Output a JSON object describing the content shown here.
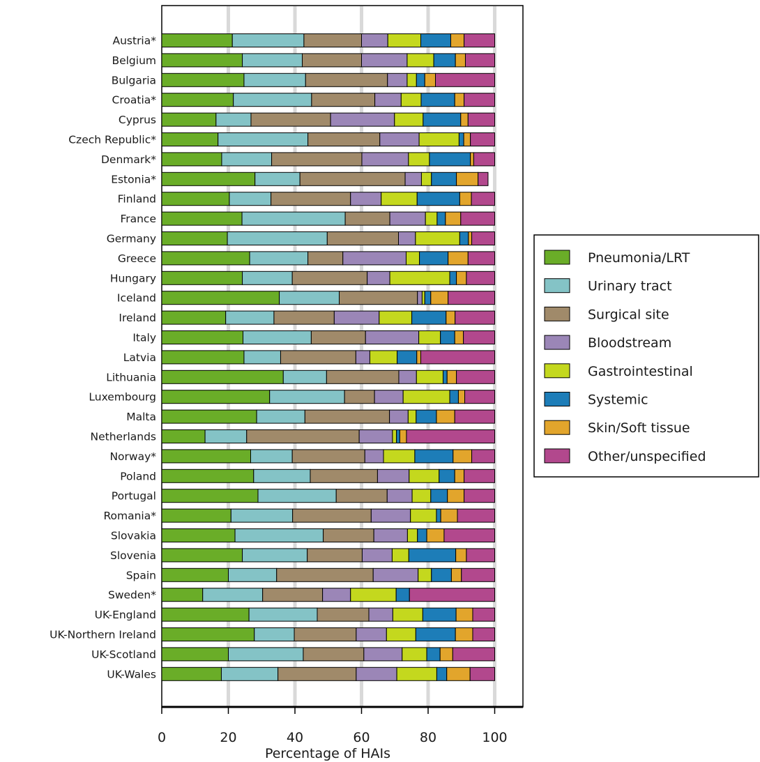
{
  "chart_data": {
    "type": "bar",
    "orientation": "horizontal",
    "stacked": true,
    "title": "",
    "xlabel": "Percentage of HAIs",
    "ylabel": "",
    "xlim": [
      0,
      108
    ],
    "xticks": [
      0,
      20,
      40,
      60,
      80,
      100
    ],
    "grid": "vertical",
    "legend_position": "right",
    "categories": [
      "Austria*",
      "Belgium",
      "Bulgaria",
      "Croatia*",
      "Cyprus",
      "Czech Republic*",
      "Denmark*",
      "Estonia*",
      "Finland",
      "France",
      "Germany",
      "Greece",
      "Hungary",
      "Iceland",
      "Ireland",
      "Italy",
      "Latvia",
      "Lithuania",
      "Luxembourg",
      "Malta",
      "Netherlands",
      "Norway*",
      "Poland",
      "Portugal",
      "Romania*",
      "Slovakia",
      "Slovenia",
      "Spain",
      "Sweden*",
      "UK-England",
      "UK-Northern Ireland",
      "UK-Scotland",
      "UK-Wales"
    ],
    "series": [
      {
        "name": "Pneumonia/LRT",
        "color": "#6aad28",
        "values": [
          21.2,
          24.2,
          24.7,
          21.5,
          16.3,
          16.9,
          18.0,
          28.0,
          20.3,
          24.1,
          19.7,
          26.4,
          24.2,
          35.3,
          19.2,
          24.4,
          24.7,
          36.5,
          32.4,
          28.5,
          13.0,
          26.7,
          27.6,
          28.9,
          20.8,
          22.0,
          24.2,
          20.0,
          12.3,
          26.2,
          27.8,
          20.0,
          17.9
        ]
      },
      {
        "name": "Urinary tract",
        "color": "#84c3c6",
        "values": [
          21.5,
          18.0,
          18.5,
          23.5,
          10.5,
          27.0,
          15.0,
          13.5,
          12.5,
          31.0,
          30.0,
          17.5,
          15.0,
          18.0,
          14.5,
          20.5,
          11.0,
          13.0,
          22.5,
          14.5,
          12.5,
          12.5,
          17.0,
          23.5,
          18.5,
          26.5,
          19.5,
          14.5,
          18.0,
          20.5,
          12.0,
          22.5,
          17.0
        ]
      },
      {
        "name": "Surgical site",
        "color": "#a08a6a",
        "values": [
          17.3,
          17.8,
          24.6,
          19.0,
          23.9,
          21.6,
          27.1,
          31.6,
          23.9,
          13.4,
          21.4,
          10.5,
          22.5,
          23.5,
          18.1,
          16.3,
          22.6,
          21.7,
          9.0,
          25.4,
          33.8,
          21.8,
          20.2,
          15.3,
          23.6,
          15.2,
          16.5,
          29.0,
          18.0,
          15.5,
          18.6,
          18.2,
          23.5
        ]
      },
      {
        "name": "Bloodstream",
        "color": "#9b86b7",
        "values": [
          7.9,
          13.7,
          5.9,
          7.9,
          19.2,
          11.8,
          14.0,
          4.9,
          9.2,
          10.7,
          5.1,
          19.0,
          6.8,
          1.4,
          13.5,
          16.0,
          4.2,
          5.3,
          8.6,
          5.6,
          10.0,
          5.6,
          9.5,
          7.5,
          11.8,
          10.1,
          9.0,
          13.5,
          8.4,
          7.2,
          9.1,
          11.5,
          12.2
        ]
      },
      {
        "name": "Gastrointestinal",
        "color": "#c4d81e",
        "values": [
          9.9,
          8.0,
          2.8,
          6.0,
          8.6,
          12.0,
          6.3,
          3.0,
          10.8,
          3.5,
          13.3,
          4.0,
          18.0,
          0.8,
          9.8,
          6.5,
          8.2,
          8.0,
          14.0,
          2.4,
          1.2,
          9.4,
          9.0,
          5.6,
          7.8,
          3.0,
          5.0,
          4.0,
          13.7,
          9.0,
          8.8,
          7.4,
          12.0
        ]
      },
      {
        "name": "Systemic",
        "color": "#1d7db8",
        "values": [
          9.0,
          6.5,
          2.5,
          10.1,
          11.3,
          1.4,
          12.3,
          7.5,
          12.8,
          2.5,
          2.6,
          8.6,
          2.0,
          1.8,
          10.3,
          4.3,
          5.9,
          1.2,
          2.6,
          6.1,
          1.0,
          11.5,
          4.7,
          5.0,
          1.3,
          2.8,
          14.1,
          6.0,
          4.0,
          10.0,
          11.9,
          4.0,
          3.0
        ]
      },
      {
        "name": "Skin/Soft tissue",
        "color": "#e2a52c",
        "values": [
          4.0,
          3.0,
          3.2,
          2.8,
          2.2,
          2.0,
          1.0,
          6.5,
          3.5,
          4.6,
          1.0,
          6.0,
          3.0,
          5.2,
          2.7,
          2.6,
          1.2,
          2.8,
          1.9,
          5.5,
          2.0,
          5.6,
          2.8,
          5.0,
          5.0,
          5.2,
          3.2,
          3.0,
          0.0,
          5.0,
          5.2,
          3.8,
          7.0
        ]
      },
      {
        "name": "Other/unspecified",
        "color": "#b2488d",
        "values": [
          9.2,
          8.8,
          17.8,
          9.2,
          8.0,
          7.3,
          6.3,
          3.0,
          7.0,
          10.2,
          6.9,
          8.0,
          8.5,
          14.0,
          11.9,
          9.4,
          22.2,
          11.5,
          9.0,
          12.0,
          26.5,
          6.9,
          9.2,
          9.2,
          11.2,
          15.2,
          8.5,
          10.0,
          25.6,
          6.6,
          6.6,
          12.6,
          7.4
        ]
      }
    ]
  }
}
